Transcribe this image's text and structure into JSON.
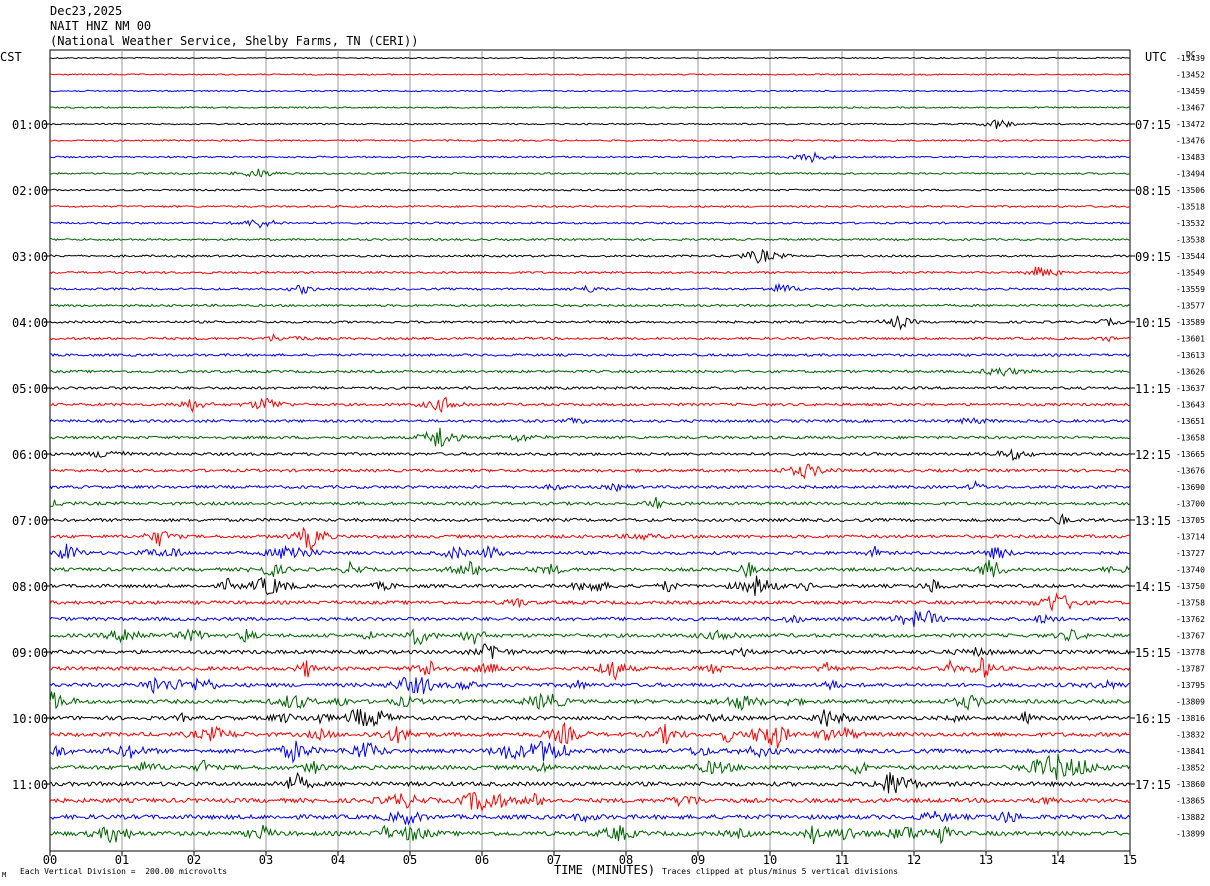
{
  "header": {
    "date": "Dec23,2025",
    "station": "NAIT HNZ NM 00",
    "source": "(National Weather Service, Shelby Farms, TN (CERI))"
  },
  "left_zone_label": "CST",
  "right_zone_label": "UTC",
  "dc_label": "DC",
  "chart_data": {
    "type": "line",
    "title": "",
    "xlabel": "TIME (MINUTES)",
    "ylabel": "",
    "xlim": [
      0,
      15
    ],
    "x_ticks": [
      "00",
      "01",
      "02",
      "03",
      "04",
      "05",
      "06",
      "07",
      "08",
      "09",
      "10",
      "11",
      "12",
      "13",
      "14",
      "15"
    ],
    "grid": true,
    "trace_colors": [
      "#000000",
      "#ff0000",
      "#0000ff",
      "#006400"
    ],
    "left_hour_labels": [
      "01:00",
      "02:00",
      "03:00",
      "04:00",
      "05:00",
      "06:00",
      "07:00",
      "08:00",
      "09:00",
      "10:00",
      "11:00"
    ],
    "right_hour_labels": [
      "07:15",
      "08:15",
      "09:15",
      "10:15",
      "11:15",
      "12:15",
      "13:15",
      "14:15",
      "15:15",
      "16:15",
      "17:15"
    ],
    "dc_offsets": [
      "-13439",
      "-13452",
      "-13459",
      "-13467",
      "-13472",
      "-13476",
      "-13483",
      "-13494",
      "-13506",
      "-13518",
      "-13532",
      "-13538",
      "-13544",
      "-13549",
      "-13559",
      "-13577",
      "-13589",
      "-13601",
      "-13613",
      "-13626",
      "-13637",
      "-13643",
      "-13651",
      "-13658",
      "-13665",
      "-13676",
      "-13690",
      "-13700",
      "-13705",
      "-13714",
      "-13727",
      "-13740",
      "-13750",
      "-13758",
      "-13762",
      "-13767",
      "-13778",
      "-13787",
      "-13795",
      "-13809",
      "-13816",
      "-13832",
      "-13841",
      "-13852",
      "-13860",
      "-13865",
      "-13882",
      "-13899"
    ]
  },
  "footer": {
    "scale_note": "Each Vertical Division =  200.00 microvolts",
    "clip_note": "Traces clipped at plus/minus 5 vertical divisions",
    "corner_mark": "M"
  }
}
